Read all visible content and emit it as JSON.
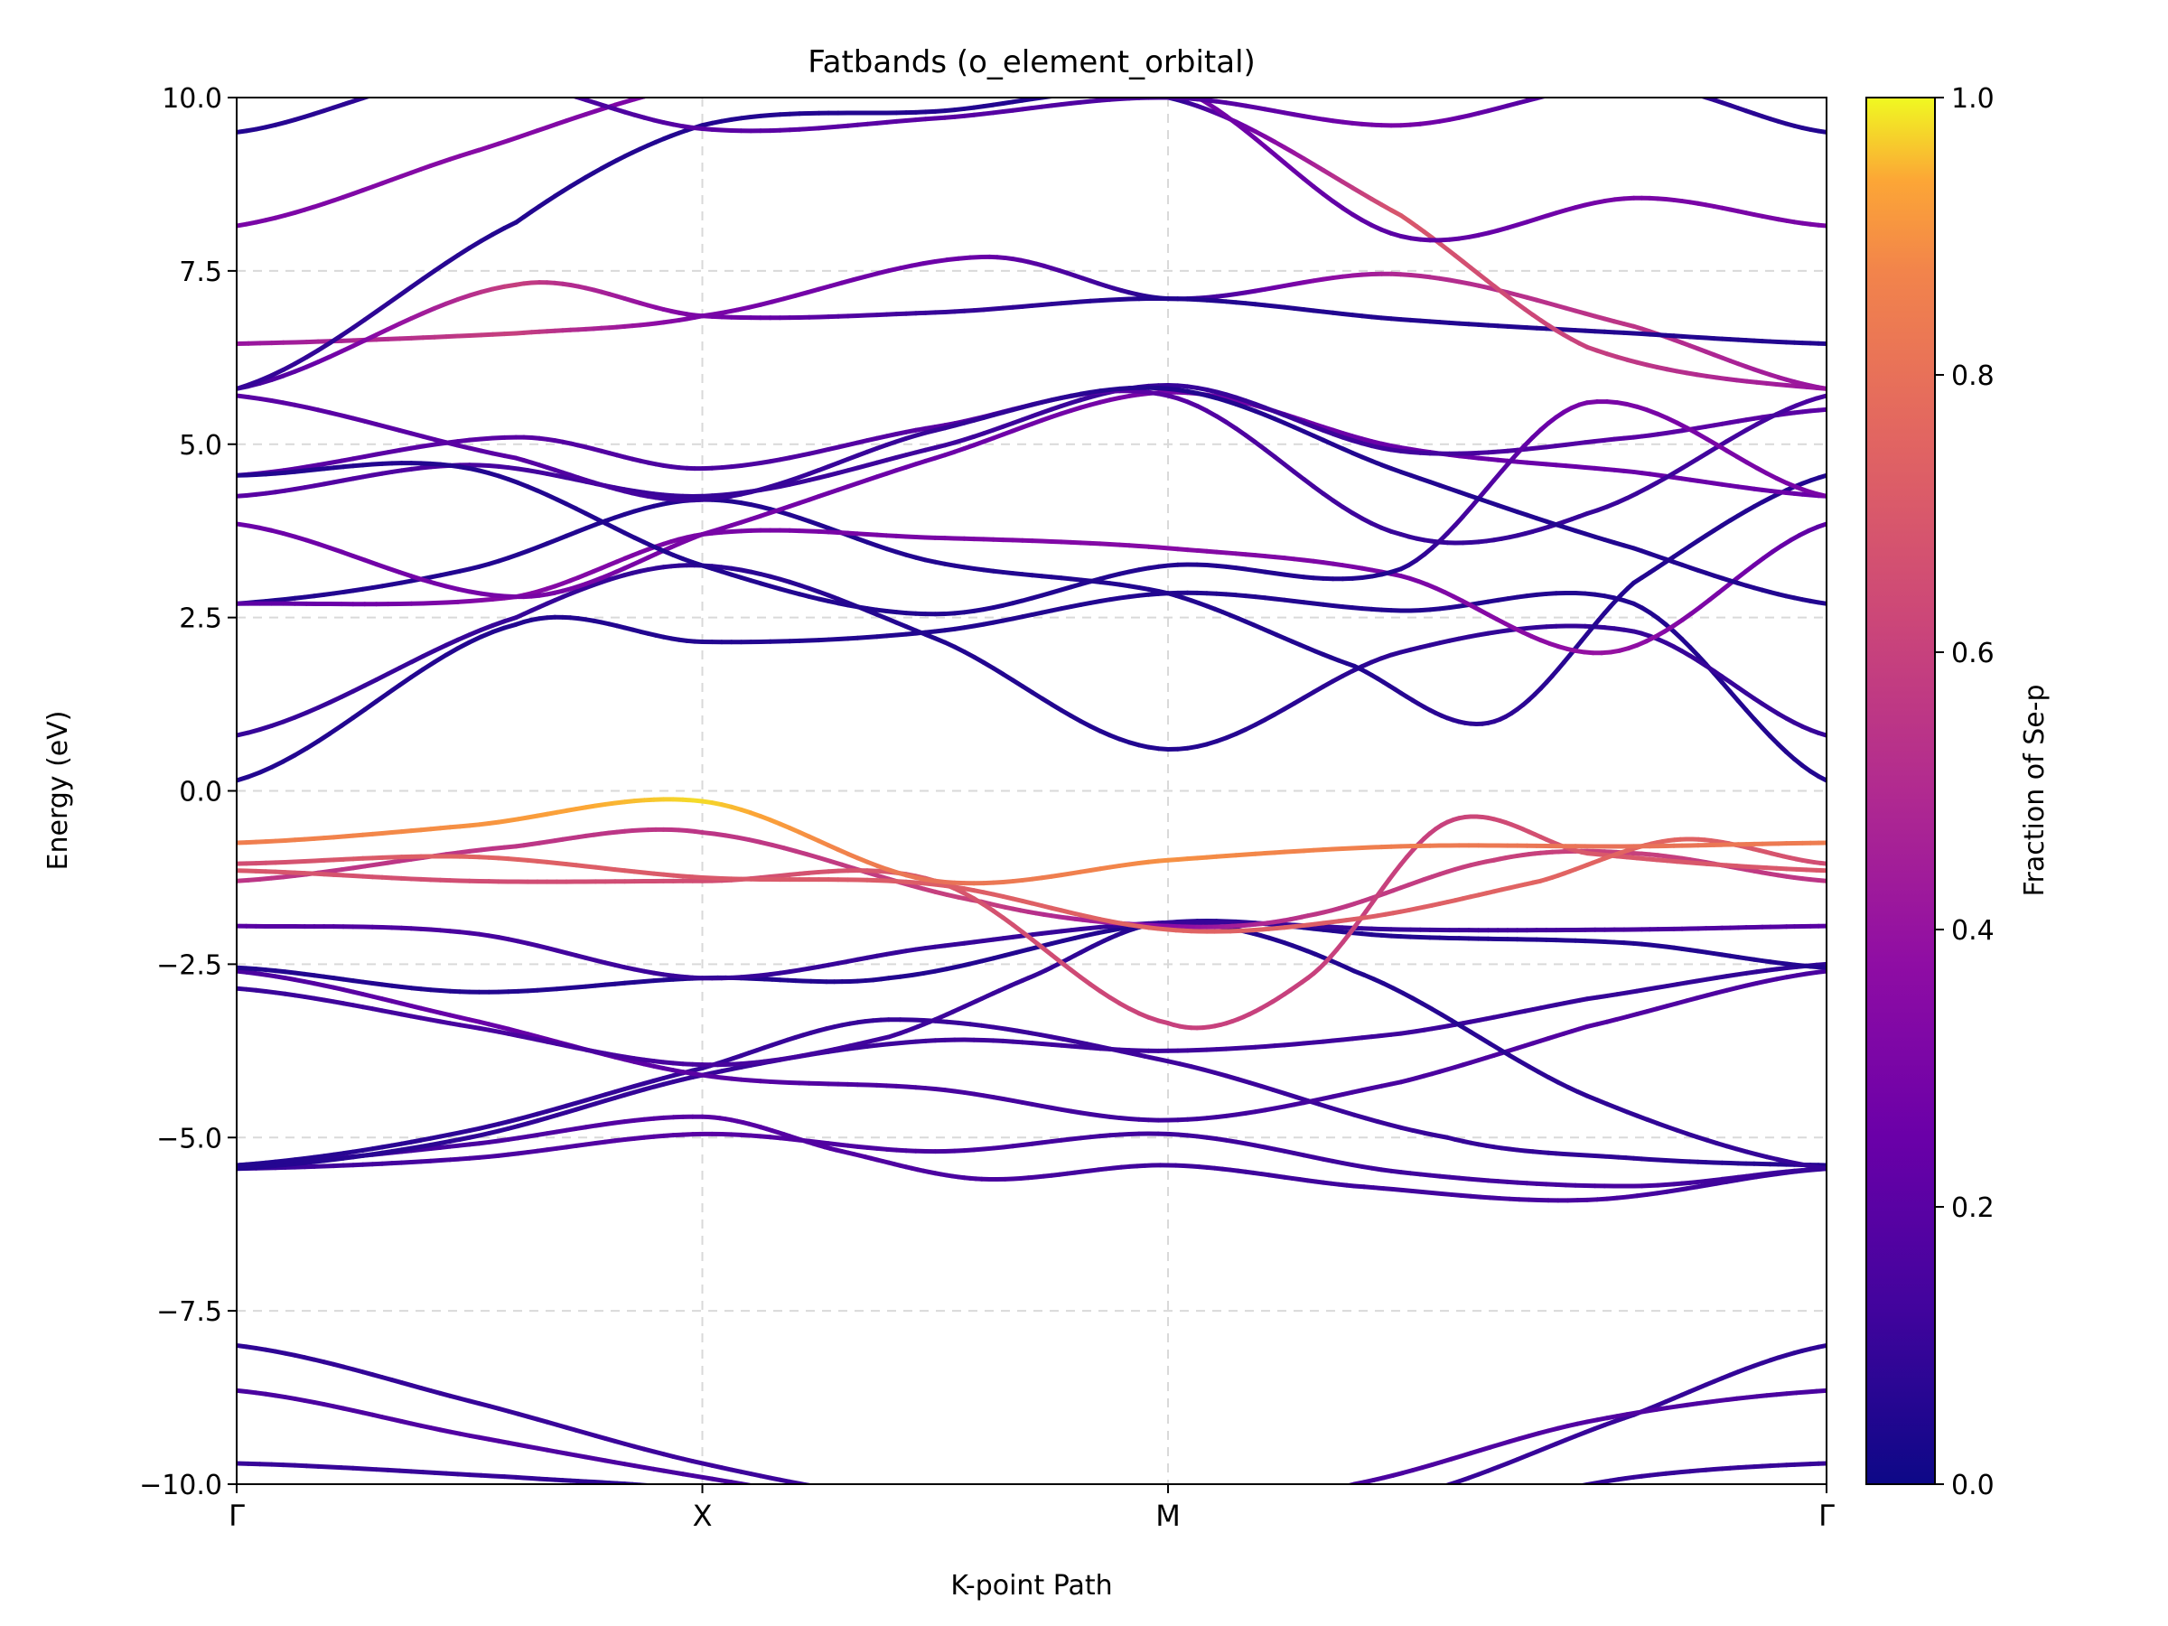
{
  "chart_data": {
    "type": "line",
    "title": "Fatbands (o_element_orbital)",
    "xlabel": "K-point Path",
    "ylabel": "Energy (eV)",
    "ylim": [
      -10.0,
      10.0
    ],
    "grid": true,
    "kpoints": [
      {
        "label": "Γ",
        "x": 0.0
      },
      {
        "label": "X",
        "x": 1.0
      },
      {
        "label": "M",
        "x": 2.0
      },
      {
        "label": "Γ",
        "x": 3.414
      }
    ],
    "yticks": [
      {
        "value": -10.0,
        "label": "−10.0"
      },
      {
        "value": -7.5,
        "label": "−7.5"
      },
      {
        "value": -5.0,
        "label": "−5.0"
      },
      {
        "value": -2.5,
        "label": "−2.5"
      },
      {
        "value": 0.0,
        "label": "0.0"
      },
      {
        "value": 2.5,
        "label": "2.5"
      },
      {
        "value": 5.0,
        "label": "5.0"
      },
      {
        "value": 7.5,
        "label": "7.5"
      },
      {
        "value": 10.0,
        "label": "10.0"
      }
    ],
    "colorbar": {
      "label": "Fraction of Se-p",
      "colormap": "plasma",
      "range": [
        0.0,
        1.0
      ],
      "ticks": [
        {
          "value": 0.0,
          "label": "0.0"
        },
        {
          "value": 0.2,
          "label": "0.2"
        },
        {
          "value": 0.4,
          "label": "0.4"
        },
        {
          "value": 0.6,
          "label": "0.6"
        },
        {
          "value": 0.8,
          "label": "0.8"
        },
        {
          "value": 1.0,
          "label": "1.0"
        }
      ]
    },
    "bands": [
      {
        "x": [
          0,
          0.6,
          1.0,
          1.5,
          2.0,
          2.6,
          3.0,
          3.414
        ],
        "y": [
          -9.7,
          -9.9,
          -10.1,
          -10.6,
          -10.8,
          -10.4,
          -9.9,
          -9.7
        ],
        "w": [
          0.1,
          0.1,
          0.05,
          0.05,
          0.05,
          0.05,
          0.1,
          0.1
        ]
      },
      {
        "x": [
          0,
          0.5,
          1.0,
          1.5,
          2.0,
          2.5,
          3.0,
          3.414
        ],
        "y": [
          -8.0,
          -8.8,
          -9.7,
          -10.3,
          -10.5,
          -10.2,
          -9.0,
          -8.0
        ],
        "w": [
          0.08,
          0.1,
          0.12,
          0.1,
          0.1,
          0.1,
          0.1,
          0.08
        ]
      },
      {
        "x": [
          0,
          0.5,
          1.0,
          1.5,
          2.0,
          2.4,
          2.9,
          3.414
        ],
        "y": [
          -8.65,
          -9.3,
          -9.9,
          -10.4,
          -10.4,
          -10.0,
          -9.1,
          -8.65
        ],
        "w": [
          0.15,
          0.18,
          0.15,
          0.12,
          0.12,
          0.15,
          0.18,
          0.15
        ]
      },
      {
        "x": [
          0,
          0.5,
          1.0,
          1.3,
          1.6,
          2.0,
          2.4,
          2.9,
          3.414
        ],
        "y": [
          -5.4,
          -5.1,
          -4.7,
          -5.2,
          -5.6,
          -5.4,
          -5.7,
          -5.9,
          -5.45
        ],
        "w": [
          0.1,
          0.15,
          0.2,
          0.18,
          0.15,
          0.12,
          0.12,
          0.15,
          0.1
        ]
      },
      {
        "x": [
          0,
          0.5,
          1.0,
          1.5,
          2.0,
          2.5,
          3.0,
          3.414
        ],
        "y": [
          -5.45,
          -5.3,
          -4.95,
          -5.2,
          -4.95,
          -5.5,
          -5.7,
          -5.45
        ],
        "w": [
          0.1,
          0.15,
          0.2,
          0.15,
          0.12,
          0.12,
          0.15,
          0.1
        ]
      },
      {
        "x": [
          0,
          0.5,
          1.0,
          1.5,
          2.0,
          2.5,
          2.9,
          3.414
        ],
        "y": [
          -5.45,
          -5.0,
          -4.1,
          -3.6,
          -3.75,
          -3.5,
          -3.0,
          -2.5
        ],
        "w": [
          0.05,
          0.08,
          0.1,
          0.12,
          0.12,
          0.12,
          0.1,
          0.08
        ]
      },
      {
        "x": [
          0,
          0.5,
          1.0,
          1.4,
          2.0,
          2.6,
          3.0,
          3.414
        ],
        "y": [
          -5.4,
          -4.9,
          -4.0,
          -3.3,
          -3.9,
          -5.0,
          -5.3,
          -5.4
        ],
        "w": [
          0.05,
          0.08,
          0.1,
          0.1,
          0.12,
          0.1,
          0.08,
          0.05
        ]
      },
      {
        "x": [
          0,
          0.5,
          1.0,
          1.5,
          2.0,
          2.5,
          2.9,
          3.414
        ],
        "y": [
          -2.6,
          -3.3,
          -4.1,
          -4.3,
          -4.75,
          -4.2,
          -3.4,
          -2.6
        ],
        "w": [
          0.15,
          0.25,
          0.2,
          0.15,
          0.12,
          0.15,
          0.18,
          0.15
        ]
      },
      {
        "x": [
          0,
          0.5,
          1.0,
          1.4,
          1.7,
          2.0,
          2.4,
          2.9,
          3.414
        ],
        "y": [
          -2.85,
          -3.4,
          -3.95,
          -3.55,
          -2.7,
          -1.9,
          -2.6,
          -4.4,
          -5.45
        ],
        "w": [
          0.1,
          0.15,
          0.15,
          0.12,
          0.1,
          0.05,
          0.05,
          0.08,
          0.1
        ]
      },
      {
        "x": [
          0,
          0.5,
          1.0,
          1.4,
          2.0,
          2.5,
          3.0,
          3.414
        ],
        "y": [
          -2.55,
          -2.9,
          -2.7,
          -2.7,
          -1.9,
          -2.1,
          -2.2,
          -2.55
        ],
        "w": [
          0.05,
          0.05,
          0.05,
          0.05,
          0.05,
          0.05,
          0.05,
          0.05
        ]
      },
      {
        "x": [
          0,
          0.5,
          1.0,
          1.5,
          2.0,
          2.5,
          3.0,
          3.414
        ],
        "y": [
          -1.95,
          -2.05,
          -2.7,
          -2.25,
          -1.9,
          -2.0,
          -2.0,
          -1.95
        ],
        "w": [
          0.2,
          0.15,
          0.1,
          0.1,
          0.1,
          0.1,
          0.15,
          0.2
        ]
      },
      {
        "x": [
          0,
          0.6,
          1.0,
          1.6,
          2.0,
          2.3,
          2.7,
          3.0,
          3.414
        ],
        "y": [
          -1.3,
          -0.8,
          -0.6,
          -1.6,
          -1.95,
          -1.8,
          -1.0,
          -0.9,
          -1.3
        ],
        "w": [
          0.55,
          0.55,
          0.55,
          0.6,
          0.35,
          0.55,
          0.6,
          0.6,
          0.55
        ]
      },
      {
        "x": [
          0,
          0.5,
          1.0,
          1.5,
          2.0,
          2.3,
          2.6,
          2.9,
          3.414
        ],
        "y": [
          -1.15,
          -1.3,
          -1.3,
          -1.3,
          -3.35,
          -2.7,
          -0.45,
          -0.9,
          -1.15
        ],
        "w": [
          0.7,
          0.65,
          0.65,
          0.7,
          0.6,
          0.6,
          0.6,
          0.7,
          0.7
        ]
      },
      {
        "x": [
          0,
          0.5,
          1.0,
          1.5,
          2.0,
          2.4,
          2.8,
          3.1,
          3.414
        ],
        "y": [
          -1.05,
          -0.95,
          -1.25,
          -1.35,
          -2.0,
          -1.85,
          -1.3,
          -0.7,
          -1.05
        ],
        "w": [
          0.65,
          0.75,
          0.7,
          0.72,
          0.75,
          0.72,
          0.75,
          0.75,
          0.65
        ]
      },
      {
        "x": [
          0,
          0.5,
          1.0,
          1.5,
          2.0,
          2.5,
          3.0,
          3.414
        ],
        "y": [
          -0.75,
          -0.5,
          -0.15,
          -1.3,
          -1.0,
          -0.8,
          -0.8,
          -0.75
        ],
        "w": [
          0.85,
          0.9,
          0.98,
          0.8,
          0.9,
          0.85,
          0.8,
          0.85
        ]
      },
      {
        "x": [
          0,
          0.6,
          1.0,
          1.5,
          2.0,
          2.5,
          3.0,
          3.414
        ],
        "y": [
          0.15,
          2.4,
          2.15,
          2.3,
          2.85,
          2.6,
          2.7,
          0.15
        ],
        "w": [
          0.05,
          0.05,
          0.05,
          0.05,
          0.05,
          0.05,
          0.05,
          0.05
        ]
      },
      {
        "x": [
          0,
          0.6,
          1.0,
          1.5,
          2.0,
          2.5,
          3.0,
          3.414
        ],
        "y": [
          0.8,
          2.5,
          3.25,
          2.2,
          0.6,
          2.0,
          2.3,
          0.8
        ],
        "w": [
          0.1,
          0.1,
          0.08,
          0.05,
          0.05,
          0.08,
          0.1,
          0.1
        ]
      },
      {
        "x": [
          0,
          0.5,
          1.0,
          1.5,
          2.0,
          2.4,
          2.7,
          3.0,
          3.414
        ],
        "y": [
          2.7,
          3.2,
          4.2,
          3.3,
          2.85,
          1.8,
          1.0,
          3.0,
          4.55
        ],
        "w": [
          0.05,
          0.05,
          0.05,
          0.05,
          0.05,
          0.05,
          0.08,
          0.05,
          0.05
        ]
      },
      {
        "x": [
          0,
          0.6,
          1.0,
          1.5,
          2.0,
          2.5,
          2.95,
          3.414
        ],
        "y": [
          2.7,
          2.8,
          3.7,
          3.65,
          3.5,
          3.1,
          2.0,
          3.85
        ],
        "w": [
          0.2,
          0.35,
          0.3,
          0.3,
          0.35,
          0.3,
          0.4,
          0.2
        ]
      },
      {
        "x": [
          0,
          0.6,
          1.0,
          1.5,
          2.0,
          2.5,
          3.0,
          3.414
        ],
        "y": [
          3.85,
          2.8,
          3.7,
          4.8,
          5.75,
          4.95,
          4.6,
          4.25
        ],
        "w": [
          0.25,
          0.3,
          0.3,
          0.25,
          0.3,
          0.25,
          0.25,
          0.25
        ]
      },
      {
        "x": [
          0,
          0.5,
          1.0,
          1.5,
          2.0,
          2.5,
          3.0,
          3.414
        ],
        "y": [
          4.25,
          4.7,
          4.25,
          4.95,
          5.85,
          4.9,
          5.1,
          5.5
        ],
        "w": [
          0.2,
          0.15,
          0.1,
          0.12,
          0.1,
          0.12,
          0.2,
          0.2
        ]
      },
      {
        "x": [
          0,
          0.6,
          1.0,
          1.5,
          2.0,
          2.5,
          2.9,
          3.414
        ],
        "y": [
          4.55,
          5.1,
          4.65,
          5.25,
          5.7,
          3.7,
          4.0,
          5.7
        ],
        "w": [
          0.2,
          0.2,
          0.15,
          0.2,
          0.2,
          0.1,
          0.1,
          0.15
        ]
      },
      {
        "x": [
          0,
          0.5,
          1.0,
          1.5,
          2.0,
          2.5,
          2.9,
          3.414
        ],
        "y": [
          4.55,
          4.65,
          3.25,
          2.55,
          3.25,
          3.2,
          5.6,
          4.25
        ],
        "w": [
          0.05,
          0.05,
          0.05,
          0.05,
          0.05,
          0.05,
          0.3,
          0.3
        ]
      },
      {
        "x": [
          0,
          0.6,
          1.0,
          1.5,
          2.0,
          2.5,
          3.0,
          3.414
        ],
        "y": [
          5.7,
          4.8,
          4.2,
          5.2,
          5.8,
          4.6,
          3.5,
          2.7
        ],
        "w": [
          0.2,
          0.2,
          0.1,
          0.1,
          0.05,
          0.05,
          0.05,
          0.05
        ]
      },
      {
        "x": [
          0,
          0.6,
          1.0,
          1.6,
          2.0,
          2.5,
          3.0,
          3.414
        ],
        "y": [
          6.45,
          6.6,
          6.85,
          7.7,
          7.1,
          7.45,
          6.7,
          5.8
        ],
        "w": [
          0.4,
          0.6,
          0.3,
          0.25,
          0.05,
          0.5,
          0.55,
          0.4
        ]
      },
      {
        "x": [
          0,
          0.6,
          1.0,
          1.5,
          2.0,
          2.5,
          3.0,
          3.414
        ],
        "y": [
          5.8,
          7.3,
          6.85,
          6.9,
          7.1,
          6.8,
          6.6,
          6.45
        ],
        "w": [
          0.1,
          0.6,
          0.3,
          0.1,
          0.05,
          0.05,
          0.05,
          0.05
        ]
      },
      {
        "x": [
          0,
          0.6,
          1.0,
          1.5,
          2.0,
          2.5,
          2.9,
          3.414
        ],
        "y": [
          5.8,
          8.2,
          9.6,
          9.8,
          10.0,
          8.3,
          6.4,
          5.8
        ],
        "w": [
          0.1,
          0.05,
          0.05,
          0.05,
          0.05,
          0.7,
          0.6,
          0.4
        ]
      },
      {
        "x": [
          0,
          0.5,
          1.0,
          1.5,
          2.0,
          2.5,
          3.0,
          3.414
        ],
        "y": [
          8.15,
          9.2,
          10.2,
          10.3,
          10.2,
          8.0,
          8.55,
          8.15
        ],
        "w": [
          0.3,
          0.35,
          0.3,
          0.3,
          0.3,
          0.2,
          0.3,
          0.3
        ]
      },
      {
        "x": [
          0,
          0.5,
          1.0,
          1.5,
          2.0,
          2.5,
          3.0,
          3.414
        ],
        "y": [
          9.5,
          10.3,
          9.55,
          9.7,
          10.0,
          9.6,
          10.2,
          9.5
        ],
        "w": [
          0.05,
          0.1,
          0.2,
          0.2,
          0.15,
          0.3,
          0.1,
          0.05
        ]
      }
    ]
  }
}
